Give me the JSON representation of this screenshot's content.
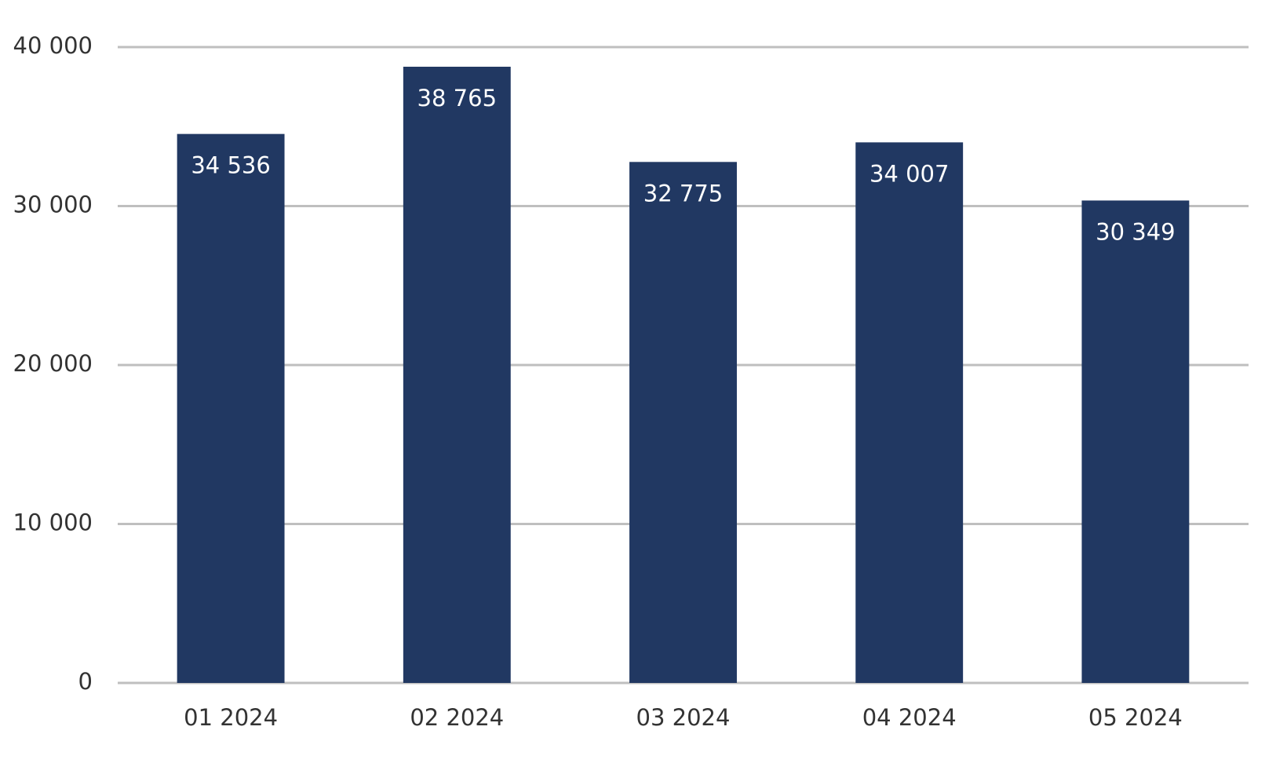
{
  "chart_data": {
    "type": "bar",
    "categories": [
      "01 2024",
      "02 2024",
      "03 2024",
      "04 2024",
      "05 2024"
    ],
    "values": [
      34536,
      38765,
      32775,
      34007,
      30349
    ],
    "value_labels": [
      "34 536",
      "38 765",
      "32 775",
      "34 007",
      "30 349"
    ],
    "color": "#213862",
    "ylim": [
      0,
      40000
    ],
    "yticks": [
      0,
      {
        "value": 10000,
        "label": "10 000"
      },
      {
        "value": 20000,
        "label": "20 000"
      },
      {
        "value": 30000,
        "label": "30 000"
      },
      {
        "value": 40000,
        "label": "40 000"
      }
    ],
    "grid": true
  }
}
